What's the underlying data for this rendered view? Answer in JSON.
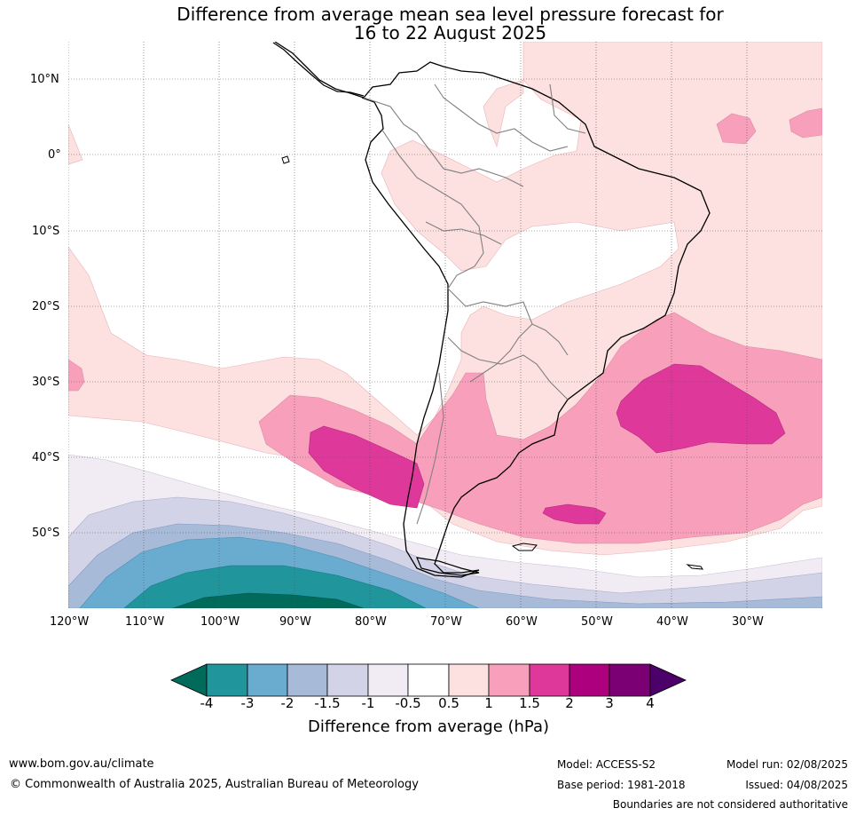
{
  "title": {
    "line1": "Difference from average mean sea level pressure forecast for",
    "line2": "16 to 22 August 2025"
  },
  "map": {
    "lat_labels": [
      "10°N",
      "0°",
      "10°S",
      "20°S",
      "30°S",
      "40°S",
      "50°S"
    ],
    "lon_labels": [
      "120°W",
      "110°W",
      "100°W",
      "90°W",
      "80°W",
      "70°W",
      "60°W",
      "50°W",
      "40°W",
      "30°W"
    ],
    "extent": {
      "lon": [
        -120,
        -20
      ],
      "lat": [
        -60,
        15
      ]
    },
    "gridlines": true
  },
  "colorbar": {
    "title": "Difference from average (hPa)",
    "ticks": [
      "-4",
      "-3",
      "-2",
      "-1.5",
      "-1",
      "-0.5",
      "0.5",
      "1",
      "1.5",
      "2",
      "3",
      "4"
    ],
    "colors": [
      "#006b5a",
      "#20969c",
      "#6aacd0",
      "#a7bbd9",
      "#d3d3e7",
      "#f1ecf3",
      "#ffffff",
      "#fde0e0",
      "#f8a0bb",
      "#de389a",
      "#ad007e",
      "#7a0073",
      "#4c006a"
    ]
  },
  "footer": {
    "website": "www.bom.gov.au/climate",
    "copyright": "© Commonwealth of Australia 2025, Australian Bureau of Meteorology",
    "model": "Model: ACCESS-S2",
    "base_period": "Base period: 1981-2018",
    "model_run": "Model run: 02/08/2025",
    "issued": "Issued: 04/08/2025",
    "disclaimer": "Boundaries are not considered authoritative"
  }
}
